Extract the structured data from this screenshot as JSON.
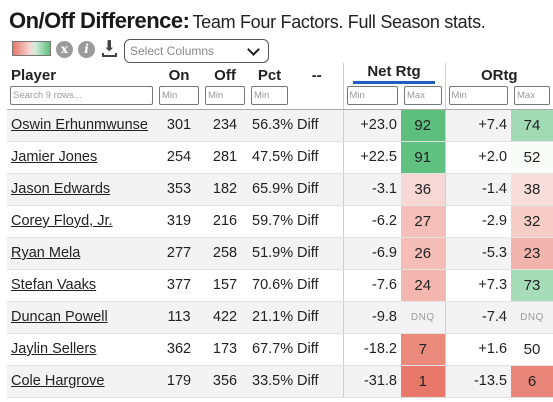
{
  "header": {
    "title": "On/Off Difference:",
    "subtitle": "Team Four Factors. Full Season stats."
  },
  "toolbar": {
    "clear_icon": "x-circle-icon",
    "clear_glyph": "x",
    "info_icon": "info-icon",
    "info_glyph": "i",
    "download_icon": "download-icon",
    "download_glyph": "⬇",
    "select_placeholder": "Select Columns"
  },
  "columns": {
    "player": "Player",
    "on": "On",
    "off": "Off",
    "pct": "Pct",
    "diff": "--",
    "netrtg": "Net Rtg",
    "ortg": "ORtg"
  },
  "filters": {
    "search_placeholder": "Search 9 rows...",
    "min": "Min",
    "max": "Max"
  },
  "colors": {
    "rank_high": "#5cbf7d",
    "rank_low": "#e8786a",
    "rank_mid": "#ffffff",
    "accent_underline": "#1f5fbf"
  },
  "rows": [
    {
      "player": "Oswin Erhunmwunse",
      "on": "301",
      "off": "234",
      "pct": "56.3%",
      "diff": "Diff",
      "netrtg": "+23.0",
      "netrtg_rank": "92",
      "ortg": "+7.4",
      "ortg_rank": "74"
    },
    {
      "player": "Jamier Jones",
      "on": "254",
      "off": "281",
      "pct": "47.5%",
      "diff": "Diff",
      "netrtg": "+22.5",
      "netrtg_rank": "91",
      "ortg": "+2.0",
      "ortg_rank": "52"
    },
    {
      "player": "Jason Edwards",
      "on": "353",
      "off": "182",
      "pct": "65.9%",
      "diff": "Diff",
      "netrtg": "-3.1",
      "netrtg_rank": "36",
      "ortg": "-1.4",
      "ortg_rank": "38"
    },
    {
      "player": "Corey Floyd, Jr.",
      "on": "319",
      "off": "216",
      "pct": "59.7%",
      "diff": "Diff",
      "netrtg": "-6.2",
      "netrtg_rank": "27",
      "ortg": "-2.9",
      "ortg_rank": "32"
    },
    {
      "player": "Ryan Mela",
      "on": "277",
      "off": "258",
      "pct": "51.9%",
      "diff": "Diff",
      "netrtg": "-6.9",
      "netrtg_rank": "26",
      "ortg": "-5.3",
      "ortg_rank": "23"
    },
    {
      "player": "Stefan Vaaks",
      "on": "377",
      "off": "157",
      "pct": "70.6%",
      "diff": "Diff",
      "netrtg": "-7.6",
      "netrtg_rank": "24",
      "ortg": "+7.3",
      "ortg_rank": "73"
    },
    {
      "player": "Duncan Powell",
      "on": "113",
      "off": "422",
      "pct": "21.1%",
      "diff": "Diff",
      "netrtg": "-9.8",
      "netrtg_rank": "DNQ",
      "ortg": "-7.4",
      "ortg_rank": "DNQ"
    },
    {
      "player": "Jaylin Sellers",
      "on": "362",
      "off": "173",
      "pct": "67.7%",
      "diff": "Diff",
      "netrtg": "-18.2",
      "netrtg_rank": "7",
      "ortg": "+1.6",
      "ortg_rank": "50"
    },
    {
      "player": "Cole Hargrove",
      "on": "179",
      "off": "356",
      "pct": "33.5%",
      "diff": "Diff",
      "netrtg": "-31.8",
      "netrtg_rank": "1",
      "ortg": "-13.5",
      "ortg_rank": "6"
    }
  ]
}
